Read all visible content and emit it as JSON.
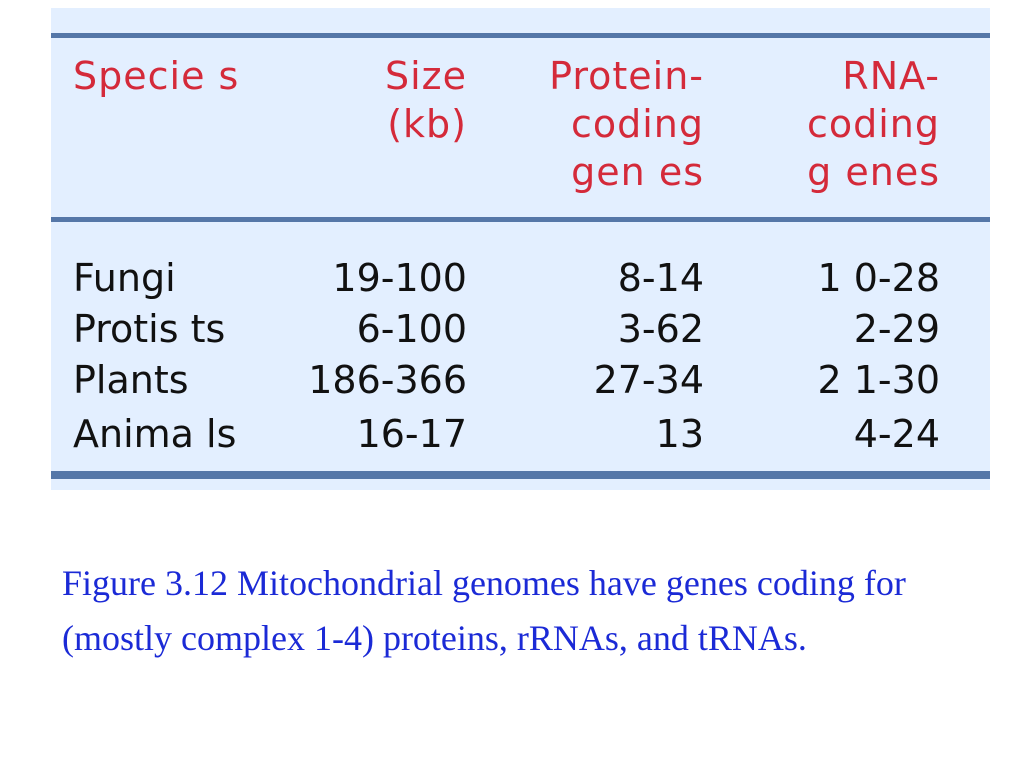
{
  "table": {
    "headers": {
      "species": [
        "Specie s"
      ],
      "size": [
        "Size",
        "(kb)"
      ],
      "protein": [
        "Protein-",
        "coding",
        "gen es"
      ],
      "rna": [
        "RNA-",
        "coding",
        "g enes"
      ]
    },
    "rows": [
      {
        "species": "Fungi",
        "size": "19-100",
        "protein": "8-14",
        "rna": "1 0-28"
      },
      {
        "species": "Protis ts",
        "size": "6-100",
        "protein": "3-62",
        "rna": "2-29"
      },
      {
        "species": "Plants",
        "size": "186-366",
        "protein": "27-34",
        "rna": "2 1-30"
      },
      {
        "species": "Anima ls",
        "size": "16-17",
        "protein": "13",
        "rna": "4-24"
      }
    ]
  },
  "caption": "Figure 3.12 Mitochondrial genomes have genes coding for (mostly complex 1-4) proteins, rRNAs, and tRNAs.",
  "colors": {
    "panel_background": "#e3efff",
    "rule": "#5577a8",
    "header_text": "#d42a3a",
    "body_text": "#111111",
    "caption_text": "#1b2ad6"
  }
}
